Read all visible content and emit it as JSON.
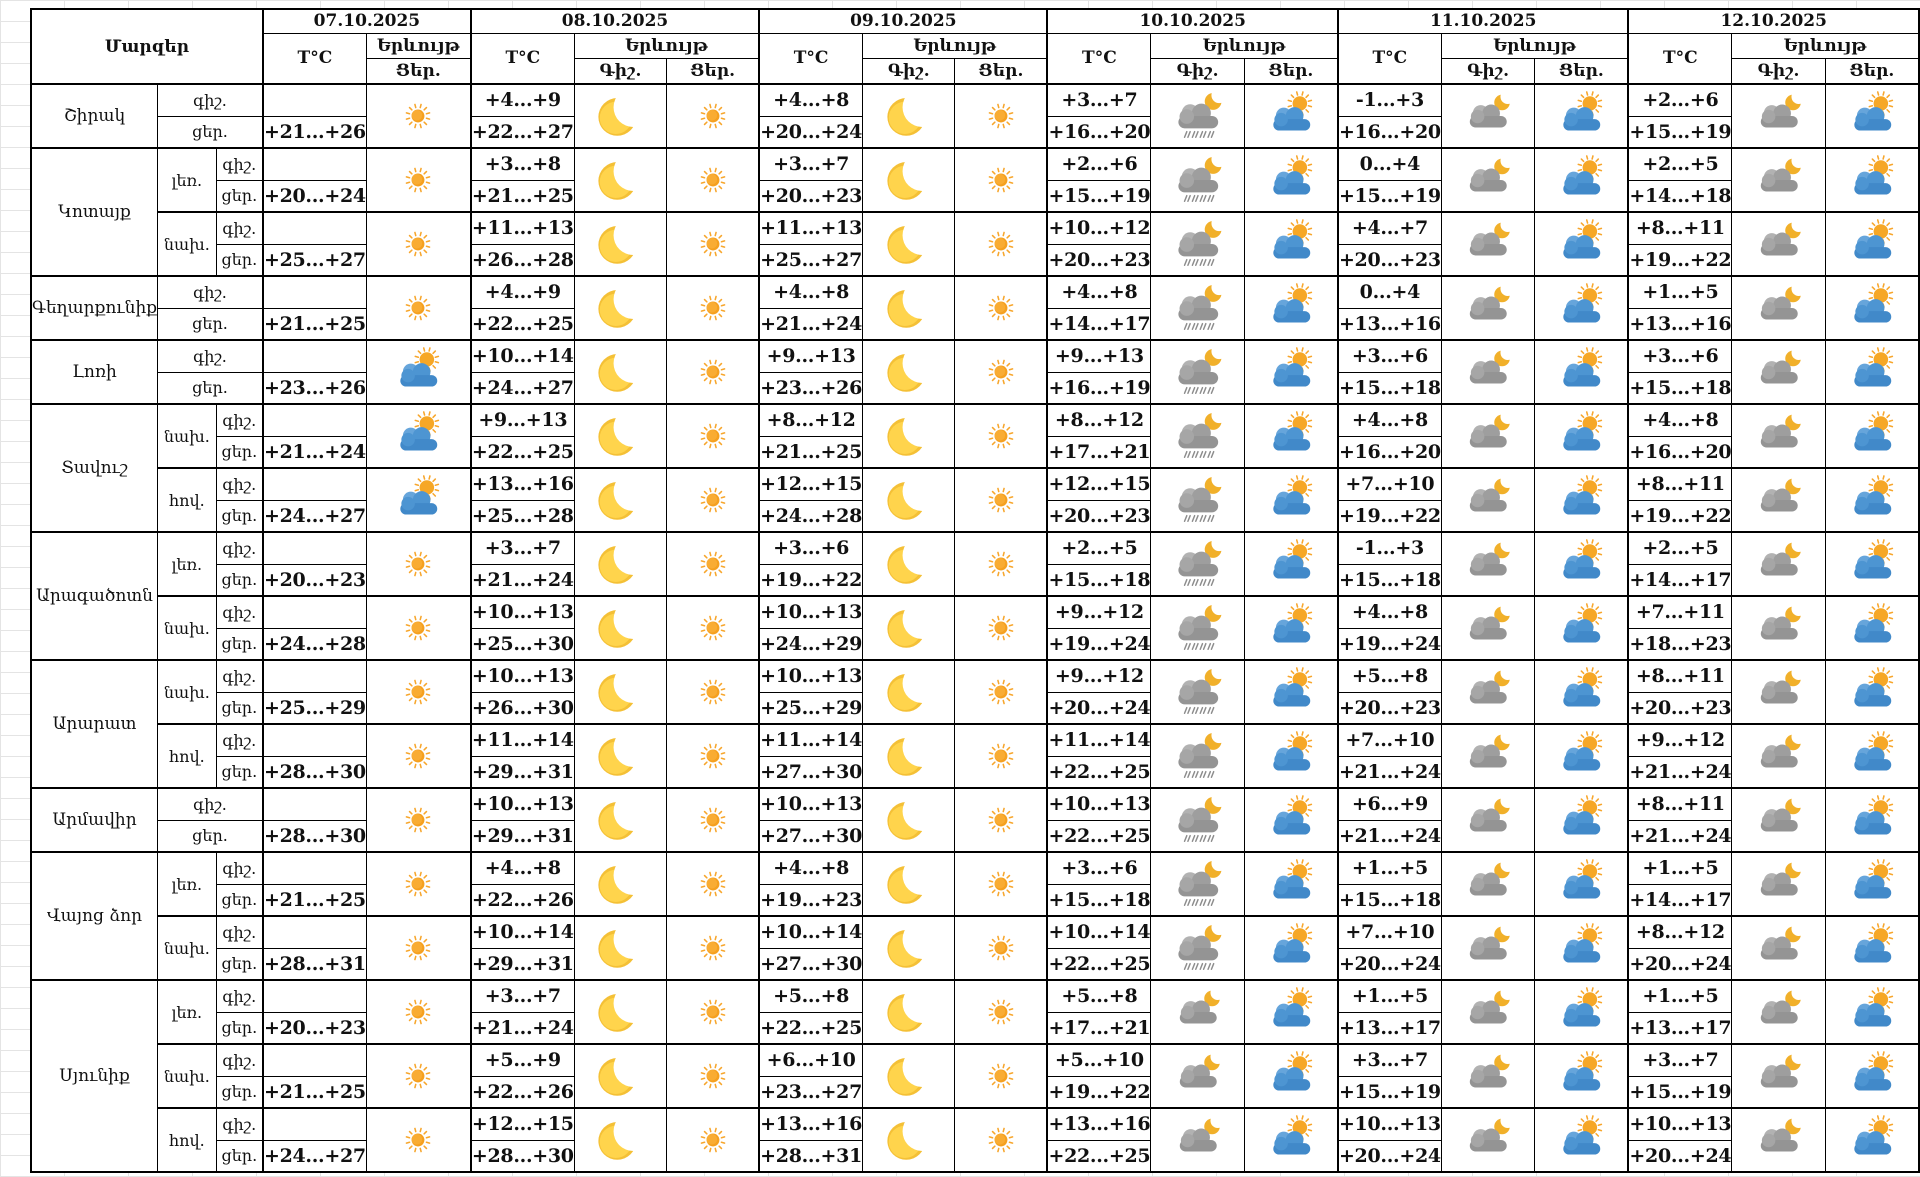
{
  "app": {
    "type": "weather-forecast-table",
    "language": "Armenian"
  },
  "colors": {
    "border": "#000000",
    "text": "#111111",
    "sun": "#F6A726",
    "moon": "#FFD44C",
    "cloud_blue": "#4D95D2",
    "cloud_gray": "#9E9E9E",
    "rain_mark": "#8D8D8D",
    "grid_line": "#e4e4e4"
  },
  "icon_names": [
    "sun",
    "moon",
    "cloud-sun",
    "cloud-moon",
    "cloud-moon-rain"
  ],
  "header": {
    "regions_label": "Մարզեր",
    "temp_label": "T°C",
    "phenomenon_label": "Երևույթ",
    "night_label": "Գիշ.",
    "day_label": "Ցեր.",
    "dates": [
      "07.10.2025",
      "08.10.2025",
      "09.10.2025",
      "10.10.2025",
      "11.10.2025",
      "12.10.2025"
    ]
  },
  "period_labels": {
    "night": "գիշ.",
    "day": "ցեր."
  },
  "groups": [
    {
      "region": "Շիրակ",
      "zones": [
        {
          "zone_label": null,
          "cells": [
            {
              "night": "",
              "day": "+21...+26",
              "day_icon": "sun"
            },
            {
              "night": "+4...+9",
              "day": "+22...+27",
              "night_icon": "moon",
              "day_icon": "sun"
            },
            {
              "night": "+4...+8",
              "day": "+20...+24",
              "night_icon": "moon",
              "day_icon": "sun"
            },
            {
              "night": "+3...+7",
              "day": "+16...+20",
              "night_icon": "cloud-moon-rain",
              "day_icon": "cloud-sun"
            },
            {
              "night": "-1...+3",
              "day": "+16...+20",
              "night_icon": "cloud-moon",
              "day_icon": "cloud-sun"
            },
            {
              "night": "+2...+6",
              "day": "+15...+19",
              "night_icon": "cloud-moon",
              "day_icon": "cloud-sun"
            }
          ]
        }
      ]
    },
    {
      "region": "Կոտայք",
      "zones": [
        {
          "zone_label": "լեռ.",
          "cells": [
            {
              "night": "",
              "day": "+20...+24",
              "day_icon": "sun"
            },
            {
              "night": "+3...+8",
              "day": "+21...+25",
              "night_icon": "moon",
              "day_icon": "sun"
            },
            {
              "night": "+3...+7",
              "day": "+20...+23",
              "night_icon": "moon",
              "day_icon": "sun"
            },
            {
              "night": "+2...+6",
              "day": "+15...+19",
              "night_icon": "cloud-moon-rain",
              "day_icon": "cloud-sun"
            },
            {
              "night": "0...+4",
              "day": "+15...+19",
              "night_icon": "cloud-moon",
              "day_icon": "cloud-sun"
            },
            {
              "night": "+2...+5",
              "day": "+14...+18",
              "night_icon": "cloud-moon",
              "day_icon": "cloud-sun"
            }
          ]
        },
        {
          "zone_label": "նախ.",
          "cells": [
            {
              "night": "",
              "day": "+25...+27",
              "day_icon": "sun"
            },
            {
              "night": "+11...+13",
              "day": "+26...+28",
              "night_icon": "moon",
              "day_icon": "sun"
            },
            {
              "night": "+11...+13",
              "day": "+25...+27",
              "night_icon": "moon",
              "day_icon": "sun"
            },
            {
              "night": "+10...+12",
              "day": "+20...+23",
              "night_icon": "cloud-moon-rain",
              "day_icon": "cloud-sun"
            },
            {
              "night": "+4...+7",
              "day": "+20...+23",
              "night_icon": "cloud-moon",
              "day_icon": "cloud-sun"
            },
            {
              "night": "+8...+11",
              "day": "+19...+22",
              "night_icon": "cloud-moon",
              "day_icon": "cloud-sun"
            }
          ]
        }
      ]
    },
    {
      "region": "Գեղարքունիք",
      "zones": [
        {
          "zone_label": null,
          "cells": [
            {
              "night": "",
              "day": "+21...+25",
              "day_icon": "sun"
            },
            {
              "night": "+4...+9",
              "day": "+22...+25",
              "night_icon": "moon",
              "day_icon": "sun"
            },
            {
              "night": "+4...+8",
              "day": "+21...+24",
              "night_icon": "moon",
              "day_icon": "sun"
            },
            {
              "night": "+4...+8",
              "day": "+14...+17",
              "night_icon": "cloud-moon-rain",
              "day_icon": "cloud-sun"
            },
            {
              "night": "0...+4",
              "day": "+13...+16",
              "night_icon": "cloud-moon",
              "day_icon": "cloud-sun"
            },
            {
              "night": "+1...+5",
              "day": "+13...+16",
              "night_icon": "cloud-moon",
              "day_icon": "cloud-sun"
            }
          ]
        }
      ]
    },
    {
      "region": "Լոռի",
      "zones": [
        {
          "zone_label": null,
          "cells": [
            {
              "night": "",
              "day": "+23...+26",
              "day_icon": "cloud-sun"
            },
            {
              "night": "+10...+14",
              "day": "+24...+27",
              "night_icon": "moon",
              "day_icon": "sun"
            },
            {
              "night": "+9...+13",
              "day": "+23...+26",
              "night_icon": "moon",
              "day_icon": "sun"
            },
            {
              "night": "+9...+13",
              "day": "+16...+19",
              "night_icon": "cloud-moon-rain",
              "day_icon": "cloud-sun"
            },
            {
              "night": "+3...+6",
              "day": "+15...+18",
              "night_icon": "cloud-moon",
              "day_icon": "cloud-sun"
            },
            {
              "night": "+3...+6",
              "day": "+15...+18",
              "night_icon": "cloud-moon",
              "day_icon": "cloud-sun"
            }
          ]
        }
      ]
    },
    {
      "region": "Տավուշ",
      "zones": [
        {
          "zone_label": "նախ.",
          "cells": [
            {
              "night": "",
              "day": "+21...+24",
              "day_icon": "cloud-sun"
            },
            {
              "night": "+9...+13",
              "day": "+22...+25",
              "night_icon": "moon",
              "day_icon": "sun"
            },
            {
              "night": "+8...+12",
              "day": "+21...+25",
              "night_icon": "moon",
              "day_icon": "sun"
            },
            {
              "night": "+8...+12",
              "day": "+17...+21",
              "night_icon": "cloud-moon-rain",
              "day_icon": "cloud-sun"
            },
            {
              "night": "+4...+8",
              "day": "+16...+20",
              "night_icon": "cloud-moon",
              "day_icon": "cloud-sun"
            },
            {
              "night": "+4...+8",
              "day": "+16...+20",
              "night_icon": "cloud-moon",
              "day_icon": "cloud-sun"
            }
          ]
        },
        {
          "zone_label": "հով.",
          "cells": [
            {
              "night": "",
              "day": "+24...+27",
              "day_icon": "cloud-sun"
            },
            {
              "night": "+13...+16",
              "day": "+25...+28",
              "night_icon": "moon",
              "day_icon": "sun"
            },
            {
              "night": "+12...+15",
              "day": "+24...+28",
              "night_icon": "moon",
              "day_icon": "sun"
            },
            {
              "night": "+12...+15",
              "day": "+20...+23",
              "night_icon": "cloud-moon-rain",
              "day_icon": "cloud-sun"
            },
            {
              "night": "+7...+10",
              "day": "+19...+22",
              "night_icon": "cloud-moon",
              "day_icon": "cloud-sun"
            },
            {
              "night": "+8...+11",
              "day": "+19...+22",
              "night_icon": "cloud-moon",
              "day_icon": "cloud-sun"
            }
          ]
        }
      ]
    },
    {
      "region": "Արագածոտն",
      "zones": [
        {
          "zone_label": "լեռ.",
          "cells": [
            {
              "night": "",
              "day": "+20...+23",
              "day_icon": "sun"
            },
            {
              "night": "+3...+7",
              "day": "+21...+24",
              "night_icon": "moon",
              "day_icon": "sun"
            },
            {
              "night": "+3...+6",
              "day": "+19...+22",
              "night_icon": "moon",
              "day_icon": "sun"
            },
            {
              "night": "+2...+5",
              "day": "+15...+18",
              "night_icon": "cloud-moon-rain",
              "day_icon": "cloud-sun"
            },
            {
              "night": "-1...+3",
              "day": "+15...+18",
              "night_icon": "cloud-moon",
              "day_icon": "cloud-sun"
            },
            {
              "night": "+2...+5",
              "day": "+14...+17",
              "night_icon": "cloud-moon",
              "day_icon": "cloud-sun"
            }
          ]
        },
        {
          "zone_label": "նախ.",
          "cells": [
            {
              "night": "",
              "day": "+24...+28",
              "day_icon": "sun"
            },
            {
              "night": "+10...+13",
              "day": "+25...+30",
              "night_icon": "moon",
              "day_icon": "sun"
            },
            {
              "night": "+10...+13",
              "day": "+24...+29",
              "night_icon": "moon",
              "day_icon": "sun"
            },
            {
              "night": "+9...+12",
              "day": "+19...+24",
              "night_icon": "cloud-moon-rain",
              "day_icon": "cloud-sun"
            },
            {
              "night": "+4...+8",
              "day": "+19...+24",
              "night_icon": "cloud-moon",
              "day_icon": "cloud-sun"
            },
            {
              "night": "+7...+11",
              "day": "+18...+23",
              "night_icon": "cloud-moon",
              "day_icon": "cloud-sun"
            }
          ]
        }
      ]
    },
    {
      "region": "Արարատ",
      "zones": [
        {
          "zone_label": "նախ.",
          "cells": [
            {
              "night": "",
              "day": "+25...+29",
              "day_icon": "sun"
            },
            {
              "night": "+10...+13",
              "day": "+26...+30",
              "night_icon": "moon",
              "day_icon": "sun"
            },
            {
              "night": "+10...+13",
              "day": "+25...+29",
              "night_icon": "moon",
              "day_icon": "sun"
            },
            {
              "night": "+9...+12",
              "day": "+20...+24",
              "night_icon": "cloud-moon-rain",
              "day_icon": "cloud-sun"
            },
            {
              "night": "+5...+8",
              "day": "+20...+23",
              "night_icon": "cloud-moon",
              "day_icon": "cloud-sun"
            },
            {
              "night": "+8...+11",
              "day": "+20...+23",
              "night_icon": "cloud-moon",
              "day_icon": "cloud-sun"
            }
          ]
        },
        {
          "zone_label": "հով.",
          "cells": [
            {
              "night": "",
              "day": "+28...+30",
              "day_icon": "sun"
            },
            {
              "night": "+11...+14",
              "day": "+29...+31",
              "night_icon": "moon",
              "day_icon": "sun"
            },
            {
              "night": "+11...+14",
              "day": "+27...+30",
              "night_icon": "moon",
              "day_icon": "sun"
            },
            {
              "night": "+11...+14",
              "day": "+22...+25",
              "night_icon": "cloud-moon-rain",
              "day_icon": "cloud-sun"
            },
            {
              "night": "+7...+10",
              "day": "+21...+24",
              "night_icon": "cloud-moon",
              "day_icon": "cloud-sun"
            },
            {
              "night": "+9...+12",
              "day": "+21...+24",
              "night_icon": "cloud-moon",
              "day_icon": "cloud-sun"
            }
          ]
        }
      ]
    },
    {
      "region": "Արմավիր",
      "zones": [
        {
          "zone_label": null,
          "cells": [
            {
              "night": "",
              "day": "+28...+30",
              "day_icon": "sun"
            },
            {
              "night": "+10...+13",
              "day": "+29...+31",
              "night_icon": "moon",
              "day_icon": "sun"
            },
            {
              "night": "+10...+13",
              "day": "+27...+30",
              "night_icon": "moon",
              "day_icon": "sun"
            },
            {
              "night": "+10...+13",
              "day": "+22...+25",
              "night_icon": "cloud-moon-rain",
              "day_icon": "cloud-sun"
            },
            {
              "night": "+6...+9",
              "day": "+21...+24",
              "night_icon": "cloud-moon",
              "day_icon": "cloud-sun"
            },
            {
              "night": "+8...+11",
              "day": "+21...+24",
              "night_icon": "cloud-moon",
              "day_icon": "cloud-sun"
            }
          ]
        }
      ]
    },
    {
      "region": "Վայոց ձոր",
      "zones": [
        {
          "zone_label": "լեռ.",
          "cells": [
            {
              "night": "",
              "day": "+21...+25",
              "day_icon": "sun"
            },
            {
              "night": "+4...+8",
              "day": "+22...+26",
              "night_icon": "moon",
              "day_icon": "sun"
            },
            {
              "night": "+4...+8",
              "day": "+19...+23",
              "night_icon": "moon",
              "day_icon": "sun"
            },
            {
              "night": "+3...+6",
              "day": "+15...+18",
              "night_icon": "cloud-moon-rain",
              "day_icon": "cloud-sun"
            },
            {
              "night": "+1...+5",
              "day": "+15...+18",
              "night_icon": "cloud-moon",
              "day_icon": "cloud-sun"
            },
            {
              "night": "+1...+5",
              "day": "+14...+17",
              "night_icon": "cloud-moon",
              "day_icon": "cloud-sun"
            }
          ]
        },
        {
          "zone_label": "նախ.",
          "cells": [
            {
              "night": "",
              "day": "+28...+31",
              "day_icon": "sun"
            },
            {
              "night": "+10...+14",
              "day": "+29...+31",
              "night_icon": "moon",
              "day_icon": "sun"
            },
            {
              "night": "+10...+14",
              "day": "+27...+30",
              "night_icon": "moon",
              "day_icon": "sun"
            },
            {
              "night": "+10...+14",
              "day": "+22...+25",
              "night_icon": "cloud-moon-rain",
              "day_icon": "cloud-sun"
            },
            {
              "night": "+7...+10",
              "day": "+20...+24",
              "night_icon": "cloud-moon",
              "day_icon": "cloud-sun"
            },
            {
              "night": "+8...+12",
              "day": "+20...+24",
              "night_icon": "cloud-moon",
              "day_icon": "cloud-sun"
            }
          ]
        }
      ]
    },
    {
      "region": "Սյունիք",
      "zones": [
        {
          "zone_label": "լեռ.",
          "cells": [
            {
              "night": "",
              "day": "+20...+23",
              "day_icon": "sun"
            },
            {
              "night": "+3...+7",
              "day": "+21...+24",
              "night_icon": "moon",
              "day_icon": "sun"
            },
            {
              "night": "+5...+8",
              "day": "+22...+25",
              "night_icon": "moon",
              "day_icon": "sun"
            },
            {
              "night": "+5...+8",
              "day": "+17...+21",
              "night_icon": "cloud-moon",
              "day_icon": "cloud-sun"
            },
            {
              "night": "+1...+5",
              "day": "+13...+17",
              "night_icon": "cloud-moon",
              "day_icon": "cloud-sun"
            },
            {
              "night": "+1...+5",
              "day": "+13...+17",
              "night_icon": "cloud-moon",
              "day_icon": "cloud-sun"
            }
          ]
        },
        {
          "zone_label": "նախ.",
          "cells": [
            {
              "night": "",
              "day": "+21...+25",
              "day_icon": "sun"
            },
            {
              "night": "+5...+9",
              "day": "+22...+26",
              "night_icon": "moon",
              "day_icon": "sun"
            },
            {
              "night": "+6...+10",
              "day": "+23...+27",
              "night_icon": "moon",
              "day_icon": "sun"
            },
            {
              "night": "+5...+10",
              "day": "+19...+22",
              "night_icon": "cloud-moon",
              "day_icon": "cloud-sun"
            },
            {
              "night": "+3...+7",
              "day": "+15...+19",
              "night_icon": "cloud-moon",
              "day_icon": "cloud-sun"
            },
            {
              "night": "+3...+7",
              "day": "+15...+19",
              "night_icon": "cloud-moon",
              "day_icon": "cloud-sun"
            }
          ]
        },
        {
          "zone_label": "հով.",
          "cells": [
            {
              "night": "",
              "day": "+24...+27",
              "day_icon": "sun"
            },
            {
              "night": "+12...+15",
              "day": "+28...+30",
              "night_icon": "moon",
              "day_icon": "sun"
            },
            {
              "night": "+13...+16",
              "day": "+28...+31",
              "night_icon": "moon",
              "day_icon": "sun"
            },
            {
              "night": "+13...+16",
              "day": "+22...+25",
              "night_icon": "cloud-moon",
              "day_icon": "cloud-sun"
            },
            {
              "night": "+10...+13",
              "day": "+20...+24",
              "night_icon": "cloud-moon",
              "day_icon": "cloud-sun"
            },
            {
              "night": "+10...+13",
              "day": "+20...+24",
              "night_icon": "cloud-moon",
              "day_icon": "cloud-sun"
            }
          ]
        }
      ]
    }
  ]
}
